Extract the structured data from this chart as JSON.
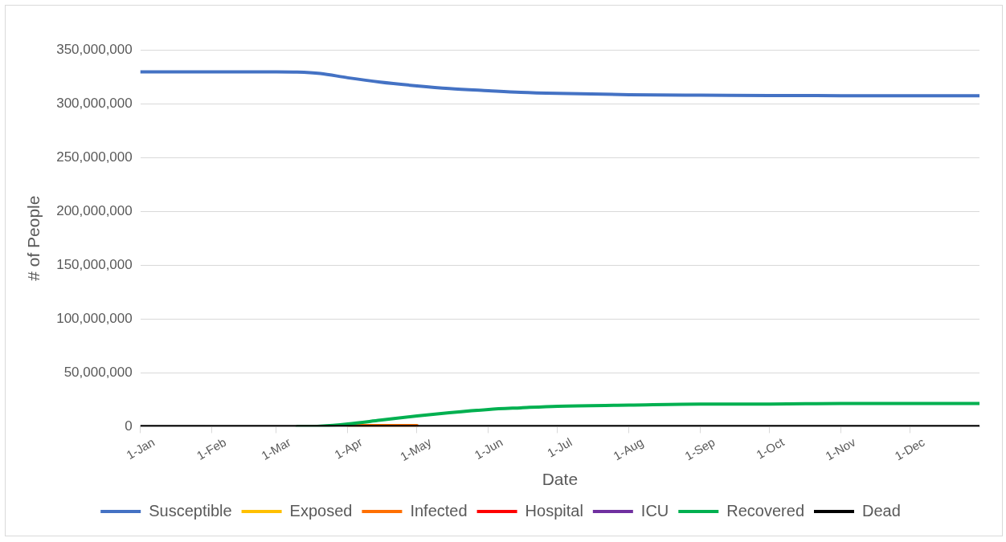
{
  "chart_data": {
    "type": "line",
    "xlabel": "Date",
    "ylabel": "# of People",
    "x": [
      "--01-01",
      "--03-01",
      "--03-10",
      "--03-20",
      "--04-01",
      "--04-15",
      "--05-01",
      "--05-15",
      "--06-01",
      "--06-15",
      "--07-01",
      "--08-01",
      "--09-01",
      "--10-01",
      "--11-01",
      "--12-01",
      "--12-31"
    ],
    "series": [
      {
        "name": "Susceptible",
        "color": "#4472c4",
        "values": [
          329500000,
          329500000,
          329300000,
          328000000,
          324000000,
          320000000,
          316500000,
          314000000,
          312000000,
          310500000,
          309500000,
          308300000,
          307800000,
          307500000,
          307400000,
          307400000,
          307400000
        ]
      },
      {
        "name": "Exposed",
        "color": "#ffc000",
        "values": [
          null,
          null,
          null,
          null,
          null,
          null,
          null,
          null,
          null,
          null,
          null,
          null,
          null,
          null,
          null,
          null,
          null
        ]
      },
      {
        "name": "Infected",
        "color": "#ff7000",
        "values": [
          null,
          null,
          null,
          null,
          1000000,
          1000000,
          1000000,
          null,
          null,
          null,
          null,
          null,
          null,
          null,
          null,
          null,
          null
        ]
      },
      {
        "name": "Hospital",
        "color": "#ff0000",
        "values": [
          null,
          null,
          null,
          null,
          null,
          null,
          null,
          null,
          null,
          null,
          null,
          null,
          null,
          null,
          null,
          null,
          null
        ]
      },
      {
        "name": "ICU",
        "color": "#7030a0",
        "values": [
          null,
          null,
          null,
          null,
          null,
          null,
          null,
          null,
          null,
          null,
          null,
          null,
          null,
          null,
          null,
          null,
          null
        ]
      },
      {
        "name": "Recovered",
        "color": "#00b050",
        "values": [
          null,
          null,
          0,
          500000,
          2500000,
          6000000,
          10000000,
          13000000,
          16000000,
          17500000,
          19000000,
          20000000,
          21000000,
          21000000,
          21500000,
          21500000,
          21500000
        ]
      },
      {
        "name": "Dead",
        "color": "#000000",
        "values": [
          0,
          0,
          0,
          0,
          0,
          0,
          0,
          0,
          0,
          0,
          0,
          0,
          0,
          0,
          0,
          0,
          0
        ]
      }
    ],
    "xlim": [
      "--01-01",
      "--12-31"
    ],
    "xticks": [
      {
        "value": "--01-01",
        "label": "1-Jan"
      },
      {
        "value": "--02-01",
        "label": "1-Feb"
      },
      {
        "value": "--03-01",
        "label": "1-Mar"
      },
      {
        "value": "--04-01",
        "label": "1-Apr"
      },
      {
        "value": "--05-01",
        "label": "1-May"
      },
      {
        "value": "--06-01",
        "label": "1-Jun"
      },
      {
        "value": "--07-01",
        "label": "1-Jul"
      },
      {
        "value": "--08-01",
        "label": "1-Aug"
      },
      {
        "value": "--09-01",
        "label": "1-Sep"
      },
      {
        "value": "--10-01",
        "label": "1-Oct"
      },
      {
        "value": "--11-01",
        "label": "1-Nov"
      },
      {
        "value": "--12-01",
        "label": "1-Dec"
      }
    ],
    "ylim": [
      0,
      350000000
    ],
    "yticks": [
      0,
      {
        "value": 50000000,
        "label": "50,000,000"
      },
      {
        "value": 100000000,
        "label": "100,000,000"
      },
      {
        "value": 150000000,
        "label": "150,000,000"
      },
      {
        "value": 200000000,
        "label": "200,000,000"
      },
      {
        "value": 250000000,
        "label": "250,000,000"
      },
      {
        "value": 300000000,
        "label": "300,000,000"
      },
      {
        "value": 350000000,
        "label": "350,000,000"
      }
    ],
    "grid": "y",
    "legend": "bottom",
    "marker": "none",
    "line_style": "solid"
  }
}
